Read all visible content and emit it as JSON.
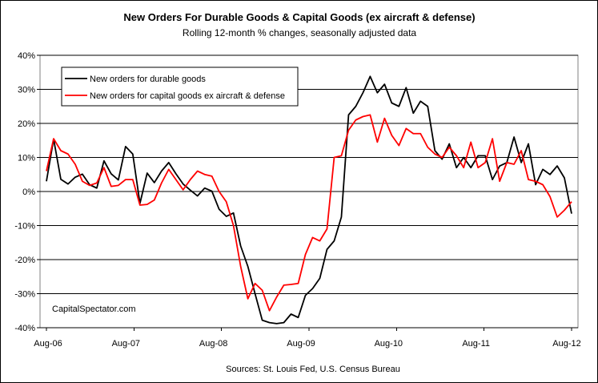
{
  "chart_data": {
    "type": "line",
    "title": "New Orders For Durable Goods & Capital Goods (ex aircraft & defense)",
    "subtitle": "Rolling 12-month % changes, seasonally adjusted data",
    "source": "Sources: St. Louis Fed, U.S. Census Bureau",
    "watermark": "CapitalSpectator.com",
    "x_tick_labels": [
      "Aug-06",
      "Aug-07",
      "Aug-08",
      "Aug-09",
      "Aug-10",
      "Aug-11",
      "Aug-12"
    ],
    "y_tick_labels": [
      "40%",
      "30%",
      "20%",
      "10%",
      "0%",
      "-10%",
      "-20%",
      "-30%",
      "-40%"
    ],
    "y_ticks": [
      40,
      30,
      20,
      10,
      0,
      -10,
      -20,
      -30,
      -40
    ],
    "ylim": [
      -40,
      40
    ],
    "x_start": "Aug-06",
    "x_end": "Aug-12",
    "grid": true,
    "legend_position": "top-left",
    "series": [
      {
        "name": "New orders for durable goods",
        "color": "#000000",
        "values": [
          3,
          15.4,
          3.6,
          2.2,
          4.2,
          5.1,
          2,
          1,
          9,
          5.2,
          3.4,
          13.2,
          11,
          -3.5,
          5.4,
          2.6,
          6,
          8.5,
          5.2,
          2.2,
          0.4,
          -1.3,
          1,
          0.1,
          -5.2,
          -7.3,
          -6.3,
          -16,
          -22,
          -30,
          -37.8,
          -38.5,
          -38.8,
          -38.5,
          -36,
          -37,
          -30.5,
          -28.5,
          -25.5,
          -17,
          -14.5,
          -7.5,
          22.5,
          25,
          29,
          33.8,
          29,
          31.5,
          26,
          25,
          30.5,
          23,
          26.5,
          25,
          12,
          9.5,
          14,
          7,
          10,
          7,
          10.5,
          10.5,
          3.5,
          7.5,
          8.5,
          16,
          8.5,
          14,
          2,
          6.5,
          5,
          7.5,
          4,
          -6.5
        ]
      },
      {
        "name": "New orders for capital goods ex aircraft & defense",
        "color": "#ff0000",
        "values": [
          6,
          15.5,
          12,
          11,
          8,
          3,
          1.8,
          2.5,
          7,
          1.5,
          1.8,
          3.5,
          3.5,
          -4,
          -3.8,
          -2.5,
          2.5,
          6.5,
          3.5,
          0.5,
          3.5,
          6,
          5,
          4.5,
          0,
          -3,
          -10,
          -22,
          -31.5,
          -27,
          -29,
          -35,
          -31,
          -27.5,
          -27.3,
          -27,
          -18.5,
          -13.5,
          -14.5,
          -11,
          10,
          10.5,
          18,
          21,
          22,
          22.5,
          14.5,
          21.5,
          16.5,
          13.5,
          18.5,
          17,
          17,
          13,
          11,
          10,
          13,
          10.5,
          7,
          14.5,
          7,
          8.5,
          15.5,
          3,
          8.5,
          8,
          12,
          3.5,
          3,
          2,
          -1.5,
          -7.5,
          -5.5,
          -3
        ]
      }
    ]
  }
}
